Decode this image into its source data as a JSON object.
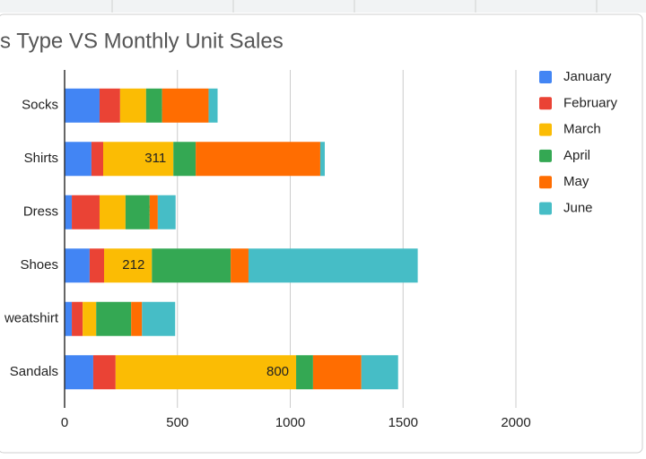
{
  "chart_data": {
    "type": "stacked_bar_horizontal",
    "title": "s Type VS Monthly Unit Sales",
    "categories": [
      "Socks",
      "Shirts",
      "Dress",
      "Shoes",
      "weatshirt",
      "Sandals"
    ],
    "series": [
      {
        "name": "January",
        "color": "#4285f4",
        "values": [
          155,
          119,
          32,
          111,
          32,
          127
        ]
      },
      {
        "name": "February",
        "color": "#ea4335",
        "values": [
          91,
          52,
          123,
          64,
          48,
          99
        ]
      },
      {
        "name": "March",
        "color": "#fbbc04",
        "values": [
          115,
          311,
          115,
          212,
          60,
          800
        ],
        "show_labels": true
      },
      {
        "name": "April",
        "color": "#34a853",
        "values": [
          71,
          99,
          107,
          349,
          155,
          75
        ]
      },
      {
        "name": "May",
        "color": "#ff6d01",
        "values": [
          206,
          552,
          36,
          79,
          48,
          214
        ]
      },
      {
        "name": "June",
        "color": "#46bdc6",
        "values": [
          40,
          20,
          79,
          750,
          147,
          163
        ]
      }
    ],
    "xlim": [
      0,
      2000
    ],
    "xticks": [
      0,
      500,
      1000,
      1500,
      2000
    ],
    "grid": true,
    "legend": "right"
  }
}
